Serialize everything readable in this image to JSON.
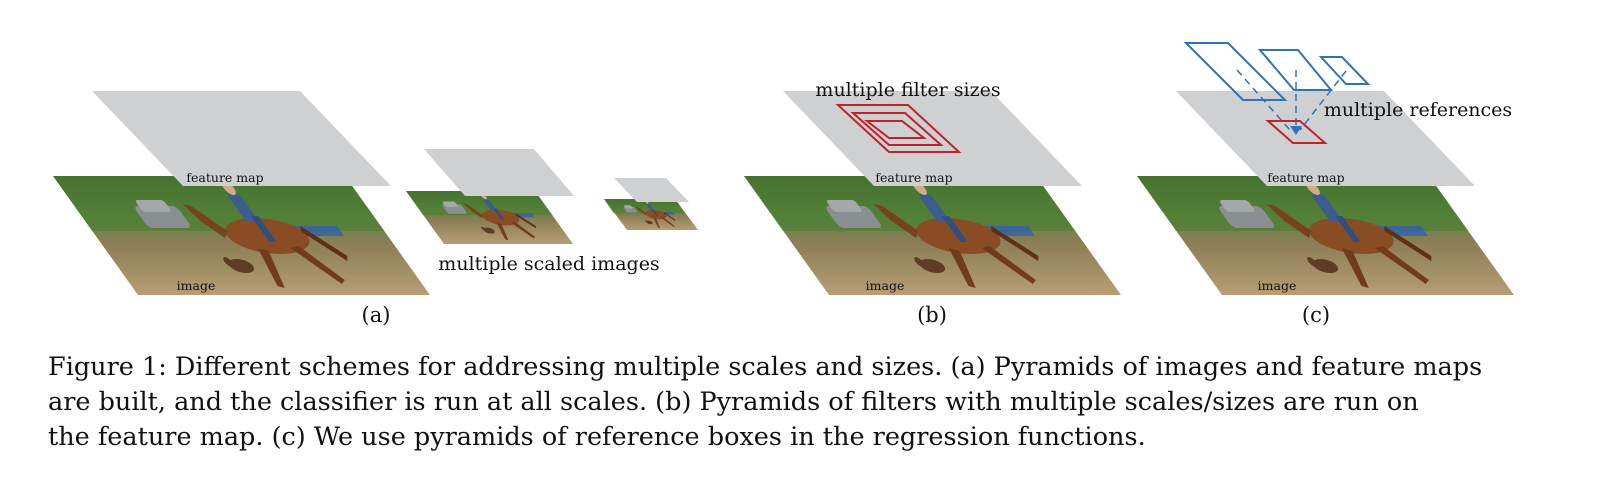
{
  "figure": {
    "panel_a": {
      "label": "(a)",
      "feature_map_label": "feature map",
      "image_label": "image",
      "scaled_images_label": "multiple scaled images"
    },
    "panel_b": {
      "label": "(b)",
      "feature_map_label": "feature map",
      "image_label": "image",
      "filter_sizes_label": "multiple filter sizes"
    },
    "panel_c": {
      "label": "(c)",
      "feature_map_label": "feature map",
      "image_label": "image",
      "references_label": "multiple references"
    },
    "colors": {
      "feature_map": "#cfd0d2",
      "filter_box": "#c0222c",
      "reference_box": "#2f73b8"
    }
  },
  "caption": {
    "line1": "Figure 1: Different schemes for addressing multiple scales and sizes. (a) Pyramids of images and feature maps",
    "line2": "are built, and the classifier is run at all scales. (b) Pyramids of filters with multiple scales/sizes are run on",
    "line3": "the feature map. (c) We use pyramids of reference boxes in the regression functions."
  }
}
